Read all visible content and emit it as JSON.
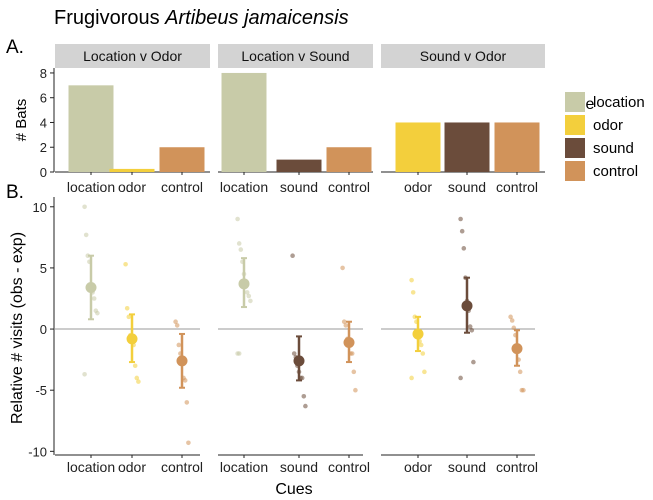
{
  "title_prefix": "Frugivorous ",
  "title_species": "Artibeus jamaicensis",
  "panel_a_label": "A.",
  "panel_b_label": "B.",
  "legend": {
    "title": "Cue",
    "items": [
      {
        "label": "location",
        "color": "#c8cba8"
      },
      {
        "label": "odor",
        "color": "#f3cf3c"
      },
      {
        "label": "sound",
        "color": "#6b4c3b"
      },
      {
        "label": "control",
        "color": "#d1935a"
      }
    ]
  },
  "x_label": "Cues",
  "chart_data": [
    {
      "type": "bar",
      "panel": "A",
      "ylabel": "# Bats",
      "ylim": [
        0,
        8.4
      ],
      "yticks": [
        0,
        2,
        4,
        6,
        8
      ],
      "facets": [
        {
          "strip": "Location v Odor",
          "categories": [
            "location",
            "odor",
            "control"
          ],
          "values": [
            7,
            0.25,
            2
          ]
        },
        {
          "strip": "Location v Sound",
          "categories": [
            "location",
            "sound",
            "control"
          ],
          "values": [
            8,
            1,
            2
          ]
        },
        {
          "strip": "Sound v Odor",
          "categories": [
            "odor",
            "sound",
            "control"
          ],
          "values": [
            4,
            4,
            4
          ]
        }
      ]
    },
    {
      "type": "scatter",
      "panel": "B",
      "ylabel": "Relative # visits (obs - exp)",
      "xlabel": "Cues",
      "ylim": [
        -10.3,
        10.8
      ],
      "yticks": [
        -10,
        -5,
        0,
        5,
        10
      ],
      "reference_line": 0,
      "facets": [
        {
          "categories": [
            "location",
            "odor",
            "control"
          ],
          "series": [
            {
              "cue": "location",
              "mean": 3.4,
              "lower": 0.8,
              "upper": 6.0,
              "points": [
                10,
                7.7,
                6,
                5.5,
                3.5,
                3,
                2.5,
                1.5,
                1.3,
                -3.7
              ]
            },
            {
              "cue": "odor",
              "mean": -0.8,
              "lower": -2.7,
              "upper": 1.2,
              "points": [
                5.3,
                1.7,
                1,
                -0.5,
                -0.8,
                -1.3,
                -3,
                -4,
                -4.3
              ]
            },
            {
              "cue": "control",
              "mean": -2.6,
              "lower": -4.8,
              "upper": -0.4,
              "points": [
                0.6,
                0.3,
                -1.3,
                -2,
                -2.5,
                -4,
                -4.2,
                -6,
                -9.3
              ]
            }
          ]
        },
        {
          "categories": [
            "location",
            "sound",
            "control"
          ],
          "series": [
            {
              "cue": "location",
              "mean": 3.7,
              "lower": 1.8,
              "upper": 5.8,
              "points": [
                9,
                7,
                6.5,
                5.5,
                4.5,
                3.5,
                3,
                2.7,
                2.3,
                -2,
                -2
              ]
            },
            {
              "cue": "sound",
              "mean": -2.6,
              "lower": -4.2,
              "upper": -0.6,
              "points": [
                6,
                -2,
                -2.3,
                -3,
                -3.5,
                -4,
                -4,
                -5.5,
                -6.3
              ]
            },
            {
              "cue": "control",
              "mean": -1.1,
              "lower": -2.7,
              "upper": 0.6,
              "points": [
                5,
                0.6,
                0.3,
                -0.8,
                -1.2,
                -2,
                -2,
                -3.5,
                -5
              ]
            }
          ]
        },
        {
          "categories": [
            "odor",
            "sound",
            "control"
          ],
          "series": [
            {
              "cue": "odor",
              "mean": -0.4,
              "lower": -1.8,
              "upper": 1.0,
              "points": [
                4,
                3,
                1,
                0.6,
                -0.7,
                -1,
                -1.3,
                -2,
                -3.5,
                -4
              ]
            },
            {
              "cue": "sound",
              "mean": 1.9,
              "lower": -0.3,
              "upper": 4.2,
              "points": [
                9,
                8,
                6.6,
                4.2,
                2.3,
                1.5,
                0.2,
                -0.1,
                -2.7,
                -4
              ]
            },
            {
              "cue": "control",
              "mean": -1.6,
              "lower": -3.0,
              "upper": -0.1,
              "points": [
                1,
                0.7,
                0.1,
                -0.5,
                -1.6,
                -2.5,
                -3.5,
                -5,
                -5
              ]
            }
          ]
        }
      ]
    }
  ]
}
